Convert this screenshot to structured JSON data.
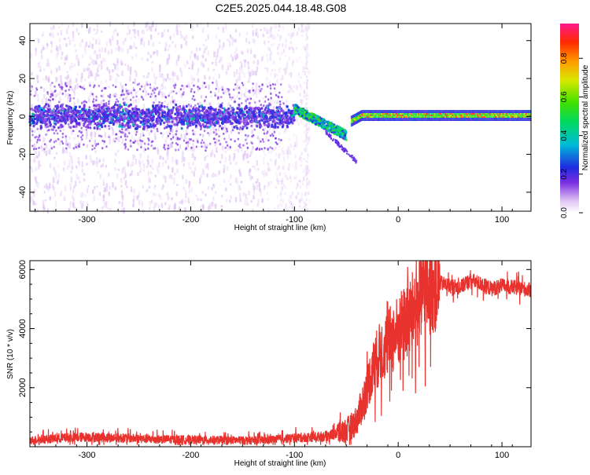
{
  "title": "C2E5.2025.044.18.48.G08",
  "chart_data": [
    {
      "type": "heatmap",
      "xlabel": "Height of straight line (km)",
      "ylabel": "Frequency (Hz)",
      "xlim": [
        -355,
        128
      ],
      "ylim": [
        -50,
        49
      ],
      "xticks": [
        -300,
        -200,
        -100,
        0,
        100
      ],
      "yticks": [
        -40,
        -20,
        0,
        20,
        40
      ],
      "colorbar": {
        "label": "Normalized spectral amplitude",
        "range": [
          0,
          0.98
        ],
        "ticks": [
          0.0,
          0.2,
          0.4,
          0.6,
          0.8
        ]
      },
      "features": [
        {
          "name": "noise band",
          "x": [
            -355,
            -130
          ],
          "freq_center": 0,
          "half_width": 5,
          "amplitude": 0.35
        },
        {
          "name": "descending track",
          "x": [
            -100,
            -50
          ],
          "freq_start": 4,
          "freq_end": -10,
          "amplitude": 0.5
        },
        {
          "name": "weak branch",
          "x": [
            -70,
            -40
          ],
          "freq_start": -8,
          "freq_end": -24,
          "amplitude": 0.2
        },
        {
          "name": "carrier line",
          "x": [
            -35,
            128
          ],
          "freq_center": 0.5,
          "half_width": 2.5,
          "amplitude": 0.85
        }
      ]
    },
    {
      "type": "line",
      "xlabel": "Height of straight line (km)",
      "ylabel": "SNR (10 * v/v)",
      "xlim": [
        -355,
        128
      ],
      "ylim": [
        0,
        6300
      ],
      "xticks": [
        -300,
        -200,
        -100,
        0,
        100
      ],
      "yticks": [
        2000,
        4000,
        6000
      ],
      "color": "#e8322d",
      "series": [
        {
          "x": [
            -355,
            -340,
            -320,
            -300,
            -280,
            -260,
            -240,
            -220,
            -200,
            -180,
            -160,
            -140,
            -120,
            -100,
            -90,
            -80,
            -70,
            -60,
            -50,
            -45,
            -40,
            -35,
            -30,
            -25,
            -20,
            -15,
            -10,
            -5,
            0,
            5,
            10,
            15,
            20,
            25,
            30,
            35,
            40,
            50,
            60,
            70,
            80,
            90,
            100,
            110,
            120,
            128
          ],
          "y": [
            220,
            260,
            300,
            330,
            310,
            290,
            260,
            250,
            240,
            230,
            220,
            210,
            240,
            300,
            320,
            330,
            360,
            450,
            550,
            700,
            900,
            1400,
            2000,
            2600,
            3000,
            3300,
            3500,
            3700,
            3900,
            4100,
            4300,
            4600,
            4900,
            5200,
            5400,
            5500,
            5550,
            5450,
            5400,
            5650,
            5500,
            5350,
            5450,
            5400,
            5350,
            5300
          ]
        }
      ]
    }
  ]
}
